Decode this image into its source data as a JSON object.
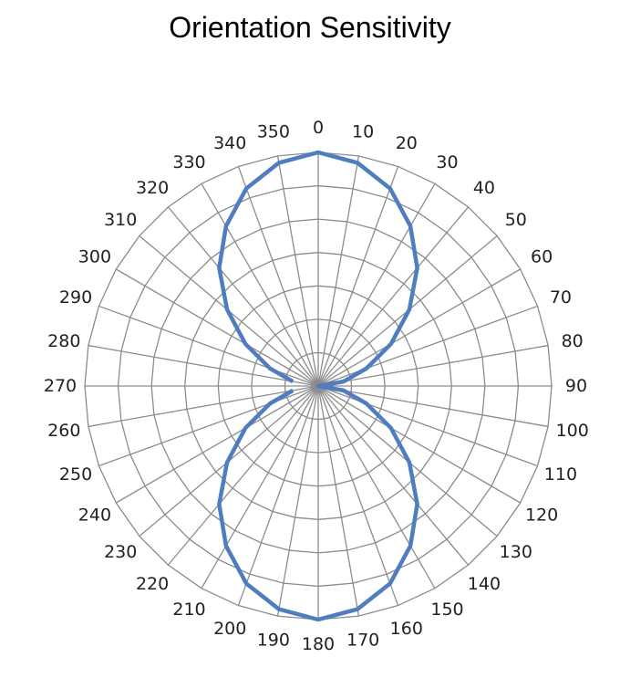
{
  "chart_data": {
    "type": "radar",
    "title": "Orientation Sensitivity",
    "angles": [
      0,
      10,
      20,
      30,
      40,
      50,
      60,
      70,
      80,
      90,
      100,
      110,
      120,
      130,
      140,
      150,
      160,
      170,
      180,
      190,
      200,
      210,
      220,
      230,
      240,
      250,
      260,
      270,
      280,
      290,
      300,
      310,
      320,
      330,
      340,
      350
    ],
    "values": [
      1.0,
      0.97,
      0.9,
      0.79,
      0.66,
      0.51,
      0.36,
      0.22,
      0.11,
      0.0,
      0.11,
      0.22,
      0.36,
      0.51,
      0.66,
      0.79,
      0.9,
      0.97,
      1.0,
      0.97,
      0.9,
      0.79,
      0.66,
      0.51,
      0.36,
      0.22,
      0.11,
      0.0,
      0.11,
      0.22,
      0.36,
      0.51,
      0.66,
      0.79,
      0.9,
      0.97
    ],
    "gaps": [
      27
    ],
    "rlim": [
      0,
      1
    ],
    "rings": 7,
    "grid": true,
    "series_color": "#4f7dc0",
    "grid_color": "#8c8c8c"
  }
}
